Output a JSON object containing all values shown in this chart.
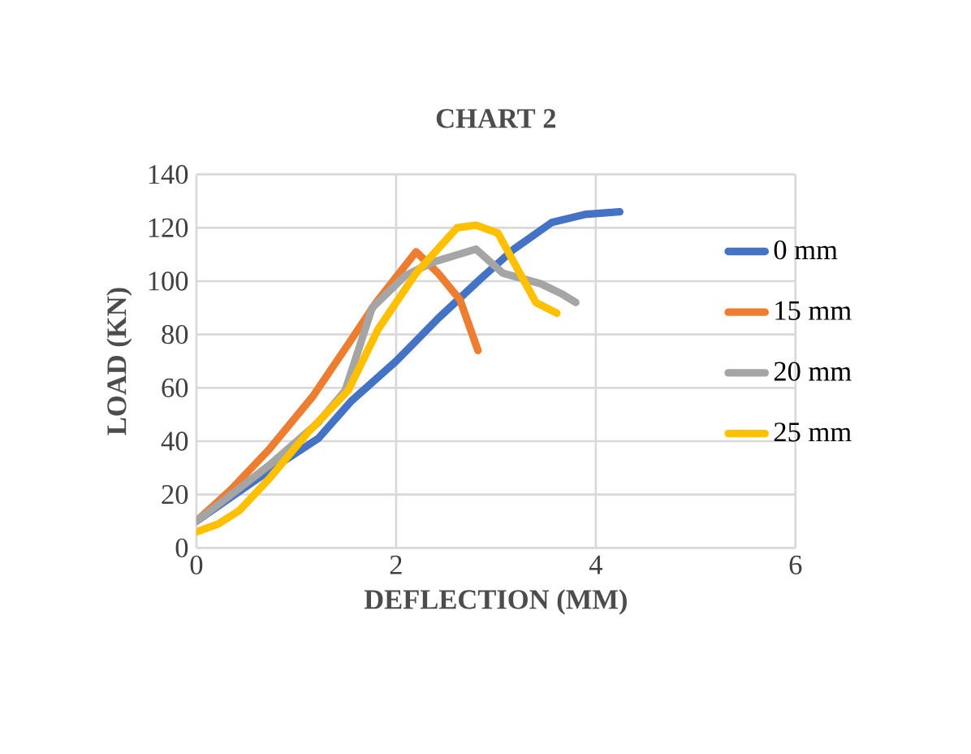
{
  "chart_data": {
    "type": "line",
    "title": "CHART 2",
    "xlabel": "DEFLECTION (MM)",
    "ylabel": "LOAD (KN)",
    "xlim": [
      0,
      6
    ],
    "ylim": [
      0,
      140
    ],
    "xticks": [
      0,
      2,
      4,
      6
    ],
    "yticks": [
      0,
      20,
      40,
      60,
      80,
      100,
      120,
      140
    ],
    "grid": true,
    "legend": "right",
    "marker": "none",
    "line_style": "solid",
    "series": [
      {
        "name": "0 mm",
        "color": "#4472c4",
        "x": [
          0,
          0.73,
          1.22,
          1.55,
          2,
          2.42,
          2.85,
          3.18,
          3.56,
          3.89,
          4.24
        ],
        "values": [
          10,
          29,
          41,
          55,
          70,
          86,
          101,
          112,
          122,
          125,
          126
        ]
      },
      {
        "name": "15 mm",
        "color": "#ed7d31",
        "x": [
          0,
          0.35,
          0.73,
          1.17,
          1.55,
          1.8,
          2.2,
          2.42,
          2.64,
          2.82
        ],
        "values": [
          10,
          22,
          37,
          57,
          78,
          92,
          111,
          103,
          93,
          74
        ]
      },
      {
        "name": "20 mm",
        "color": "#a5a5a5",
        "x": [
          0,
          0.35,
          0.73,
          1.22,
          1.49,
          1.76,
          2.09,
          2.36,
          2.8,
          3.07,
          3.45,
          3.67,
          3.8
        ],
        "values": [
          10,
          20,
          31,
          47,
          59,
          90,
          102,
          107,
          112,
          103,
          99,
          95,
          92
        ]
      },
      {
        "name": "25 mm",
        "color": "#ffc000",
        "x": [
          0,
          0.22,
          0.43,
          0.73,
          1.11,
          1.52,
          1.82,
          2.2,
          2.61,
          2.8,
          3.02,
          3.21,
          3.4,
          3.61
        ],
        "values": [
          6,
          9,
          14,
          26,
          43,
          59,
          82,
          103,
          120,
          121,
          118,
          105,
          92,
          88
        ]
      }
    ]
  }
}
